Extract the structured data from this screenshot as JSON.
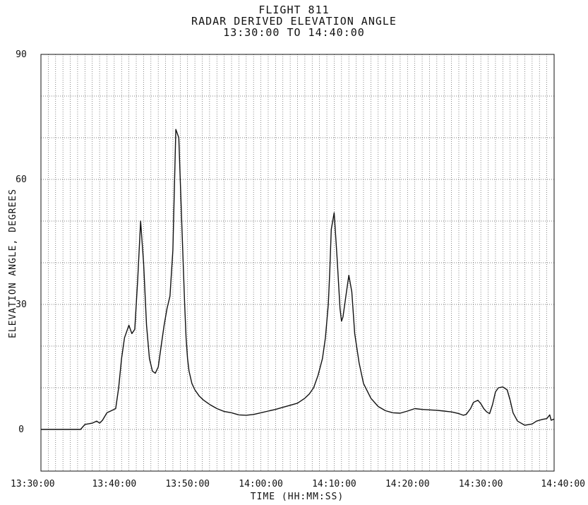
{
  "title_lines": [
    "FLIGHT 811",
    "RADAR DERIVED ELEVATION ANGLE",
    "13:30:00 TO 14:40:00"
  ],
  "chart_data": {
    "type": "line",
    "title": "FLIGHT 811",
    "subtitle": "RADAR DERIVED ELEVATION ANGLE 13:30:00 TO 14:40:00",
    "xlabel": "TIME (HH:MM:SS)",
    "ylabel": "ELEVATION ANGLE, DEGREES",
    "xlim": [
      "13:30:00",
      "14:40:00"
    ],
    "ylim": [
      -10,
      90
    ],
    "y_ticks": [
      0,
      30,
      60,
      90
    ],
    "y_tick_labels": [
      "0",
      "30",
      "60",
      "90"
    ],
    "x_ticks": [
      "13:30:00",
      "13:40:00",
      "13:50:00",
      "14:00:00",
      "14:10:00",
      "14:20:00",
      "14:30:00",
      "14:40:00"
    ],
    "grid": true,
    "series": [
      {
        "color": "#111111",
        "x": [
          "13:30:00",
          "13:35:24",
          "13:36:00",
          "13:37:00",
          "13:37:36",
          "13:38:00",
          "13:38:24",
          "13:39:00",
          "13:39:36",
          "13:40:12",
          "13:40:36",
          "13:41:00",
          "13:41:24",
          "13:42:00",
          "13:42:24",
          "13:42:48",
          "13:43:12",
          "13:43:36",
          "13:44:00",
          "13:44:24",
          "13:44:48",
          "13:45:12",
          "13:45:36",
          "13:46:00",
          "13:46:24",
          "13:46:48",
          "13:47:12",
          "13:47:36",
          "13:48:00",
          "13:48:24",
          "13:48:48",
          "13:49:12",
          "13:49:36",
          "13:49:48",
          "13:50:00",
          "13:50:12",
          "13:50:36",
          "13:51:00",
          "13:51:36",
          "13:52:12",
          "13:53:00",
          "13:54:00",
          "13:55:00",
          "13:56:00",
          "13:57:00",
          "13:58:00",
          "13:59:00",
          "14:00:00",
          "14:01:00",
          "14:02:00",
          "14:03:00",
          "14:04:00",
          "14:05:00",
          "14:06:00",
          "14:06:36",
          "14:07:12",
          "14:07:48",
          "14:08:24",
          "14:08:48",
          "14:09:12",
          "14:09:24",
          "14:09:36",
          "14:10:00",
          "14:10:24",
          "14:10:48",
          "14:11:00",
          "14:11:12",
          "14:11:36",
          "14:12:00",
          "14:12:24",
          "14:12:48",
          "14:13:24",
          "14:14:00",
          "14:15:00",
          "14:16:00",
          "14:17:00",
          "14:18:00",
          "14:19:00",
          "14:20:00",
          "14:21:00",
          "14:22:00",
          "14:23:00",
          "14:24:00",
          "14:25:00",
          "14:26:00",
          "14:27:00",
          "14:27:36",
          "14:28:00",
          "14:28:36",
          "14:29:00",
          "14:29:36",
          "14:30:00",
          "14:30:24",
          "14:30:48",
          "14:31:12",
          "14:31:36",
          "14:32:00",
          "14:32:24",
          "14:33:00",
          "14:33:36",
          "14:34:00",
          "14:34:24",
          "14:35:00",
          "14:36:00",
          "14:37:00",
          "14:37:36",
          "14:38:00",
          "14:38:24",
          "14:39:00",
          "14:39:24",
          "14:39:36",
          "14:40:00"
        ],
        "values": [
          0,
          0,
          1.2,
          1.5,
          2,
          1.5,
          2.2,
          4,
          4.5,
          5,
          10,
          17,
          22,
          25,
          23,
          24,
          36,
          50,
          40,
          25,
          17,
          14,
          13.5,
          15,
          20,
          25,
          29,
          32,
          43,
          72,
          70,
          50,
          30,
          22,
          17,
          14,
          11,
          9.5,
          8,
          7,
          6,
          5,
          4.3,
          4,
          3.5,
          3.4,
          3.6,
          4,
          4.4,
          4.8,
          5.3,
          5.8,
          6.3,
          7.5,
          8.5,
          10,
          13,
          17,
          22,
          30,
          38,
          48,
          52,
          41,
          29,
          26,
          27,
          32,
          37,
          33,
          23,
          16,
          11,
          7.5,
          5.5,
          4.5,
          4,
          3.9,
          4.4,
          5,
          4.8,
          4.7,
          4.6,
          4.4,
          4.2,
          3.8,
          3.4,
          3.6,
          5,
          6.5,
          7,
          6.2,
          5,
          4.2,
          3.8,
          6,
          9,
          10,
          10.2,
          9.5,
          7,
          4,
          2,
          1,
          1.3,
          2,
          2.2,
          2.4,
          2.6,
          3.5,
          2.2,
          2.5
        ]
      }
    ]
  }
}
